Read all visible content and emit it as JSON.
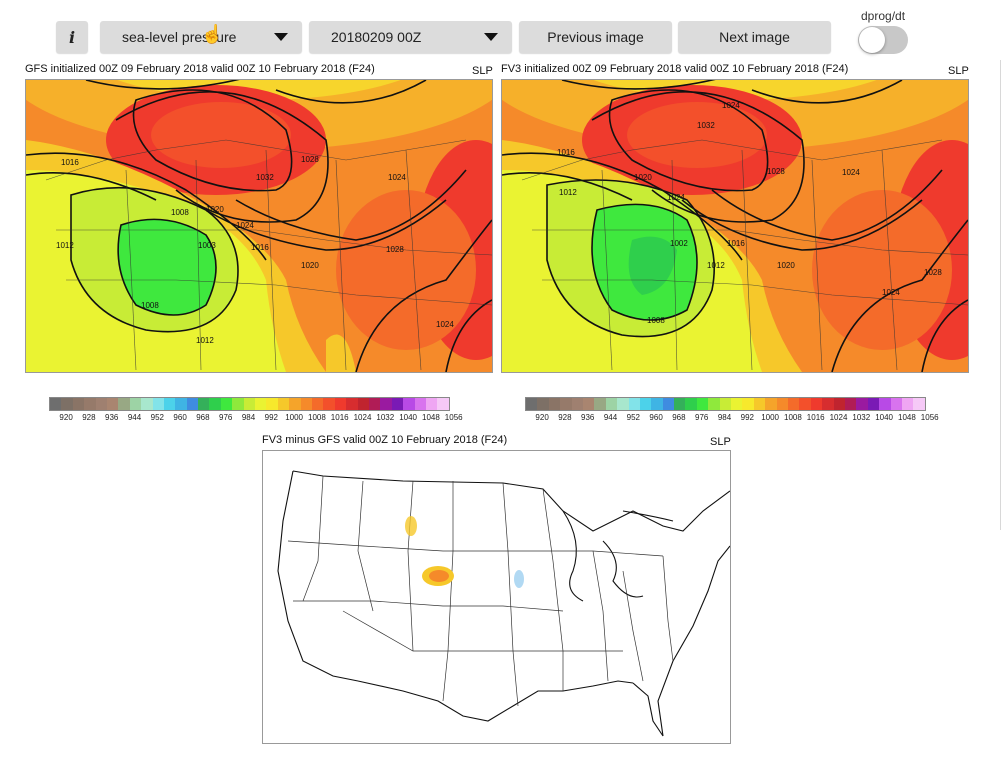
{
  "toolbar": {
    "info_label": "i",
    "variable_select": {
      "value": "sea-level pressure"
    },
    "date_select": {
      "value": "20180209 00Z"
    },
    "prev_label": "Previous image",
    "next_label": "Next image",
    "toggle_label": "dprog/dt",
    "toggle_on": false
  },
  "panels": {
    "gfs": {
      "title": "GFS initialized 00Z 09 February 2018 valid 00Z 10 February 2018 (F24)",
      "tag": "SLP"
    },
    "fv3": {
      "title": "FV3 initialized 00Z 09 February 2018 valid 00Z 10 February 2018 (F24)",
      "tag": "SLP"
    },
    "diff": {
      "title": "FV3 minus GFS valid 00Z 10 February 2018 (F24)",
      "tag": "SLP"
    }
  },
  "gfs_contours": [
    "1016",
    "1012",
    "1008",
    "1020",
    "1024",
    "1032",
    "1028",
    "1024",
    "1003",
    "1016",
    "1020",
    "1028",
    "1008",
    "1012",
    "1024"
  ],
  "fv3_contours": [
    "1016",
    "1012",
    "1020",
    "1024",
    "1032",
    "1024",
    "1028",
    "1024",
    "1002",
    "1016",
    "1012",
    "1020",
    "1028",
    "1024",
    "1008"
  ],
  "colorbar": {
    "labels": [
      "920",
      "928",
      "936",
      "944",
      "952",
      "960",
      "968",
      "976",
      "984",
      "992",
      "1000",
      "1008",
      "1016",
      "1024",
      "1032",
      "1040",
      "1048",
      "1056"
    ],
    "colors": [
      "#6e6e6e",
      "#7d7066",
      "#8a7466",
      "#967a6a",
      "#9f8070",
      "#a98570",
      "#98a884",
      "#9dd3a5",
      "#a8e7cd",
      "#82e3e9",
      "#4cd2ea",
      "#3fb4e4",
      "#3f8ce0",
      "#34b05a",
      "#2fcf4c",
      "#3fe83e",
      "#8fe93c",
      "#c8ec36",
      "#eaf332",
      "#f7e92c",
      "#f6c82a",
      "#f5a42a",
      "#f58a2a",
      "#f46b2a",
      "#f3502b",
      "#ef3a2d",
      "#d72d2f",
      "#c0242f",
      "#b01c56",
      "#9a1aa0",
      "#7a1ab5",
      "#b84ae6",
      "#d873ee",
      "#efa6f3",
      "#f6c9f7"
    ]
  }
}
